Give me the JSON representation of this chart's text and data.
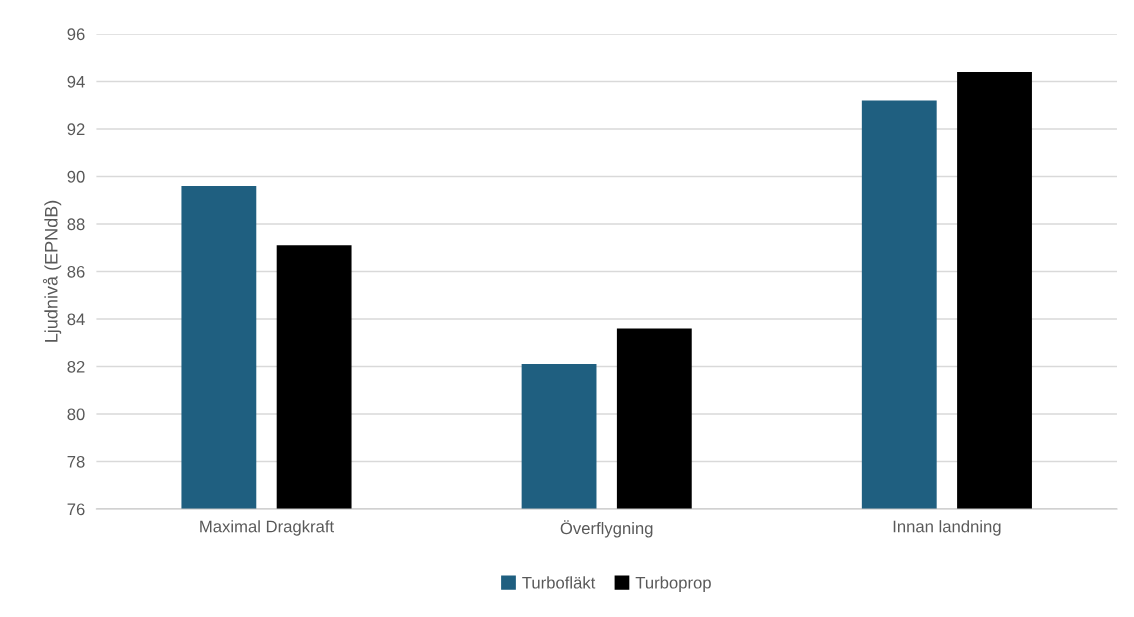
{
  "chart_data": {
    "type": "bar",
    "ylabel": "Ljudnivå (EPNdB)",
    "categories": [
      "Maximal Dragkraft",
      "Överflygning",
      "Innan landning"
    ],
    "series": [
      {
        "name": "Turbofläkt",
        "color": "#1f5f80",
        "values": [
          89.6,
          82.1,
          93.2
        ]
      },
      {
        "name": "Turboprop",
        "color": "#000000",
        "values": [
          87.1,
          83.6,
          94.4
        ]
      }
    ],
    "ylim": [
      76,
      96
    ],
    "yticks": [
      76,
      78,
      80,
      82,
      84,
      86,
      88,
      90,
      92,
      94,
      96
    ],
    "grid": "y",
    "legend": "bottom"
  }
}
